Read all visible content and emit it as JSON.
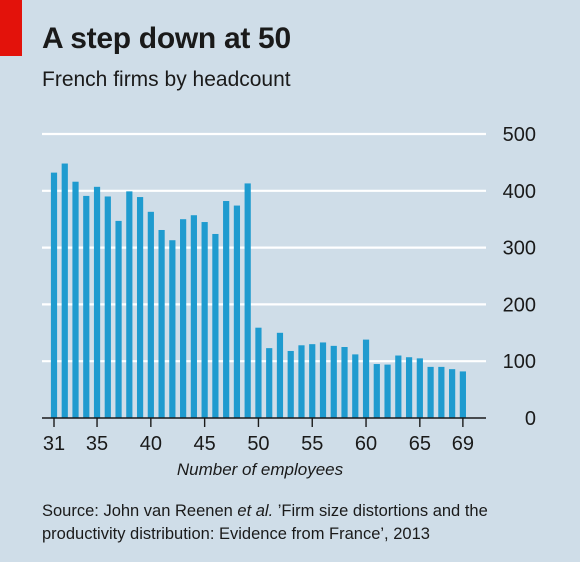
{
  "header": {
    "title": "A step down at 50",
    "subtitle": "French firms by headcount"
  },
  "footer": {
    "source_prefix": "Source: John van Reenen ",
    "source_italic": "et al.",
    "source_suffix": " ’Firm size distortions and the productivity distribution: Evidence from France’, 2013"
  },
  "colors": {
    "background": "#cfdde8",
    "bar": "#1f9bcf",
    "accent": "#e3120b",
    "grid": "#ffffff"
  },
  "chart_data": {
    "type": "bar",
    "xlabel": "Number of employees",
    "ylabel": "",
    "ylim": [
      0,
      500
    ],
    "yticks": [
      0,
      100,
      200,
      300,
      400,
      500
    ],
    "y_axis_position": "right",
    "grid": true,
    "xtick_labels": [
      "31",
      "35",
      "40",
      "45",
      "50",
      "55",
      "60",
      "65",
      "69"
    ],
    "categories": [
      31,
      32,
      33,
      34,
      35,
      36,
      37,
      38,
      39,
      40,
      41,
      42,
      43,
      44,
      45,
      46,
      47,
      48,
      49,
      50,
      51,
      52,
      53,
      54,
      55,
      56,
      57,
      58,
      59,
      60,
      61,
      62,
      63,
      64,
      65,
      66,
      67,
      68,
      69
    ],
    "values": [
      432,
      448,
      416,
      391,
      407,
      390,
      347,
      399,
      389,
      363,
      331,
      313,
      350,
      357,
      345,
      324,
      382,
      374,
      413,
      159,
      123,
      150,
      118,
      128,
      130,
      133,
      127,
      125,
      112,
      138,
      95,
      94,
      110,
      107,
      105,
      90,
      90,
      86,
      82
    ]
  }
}
